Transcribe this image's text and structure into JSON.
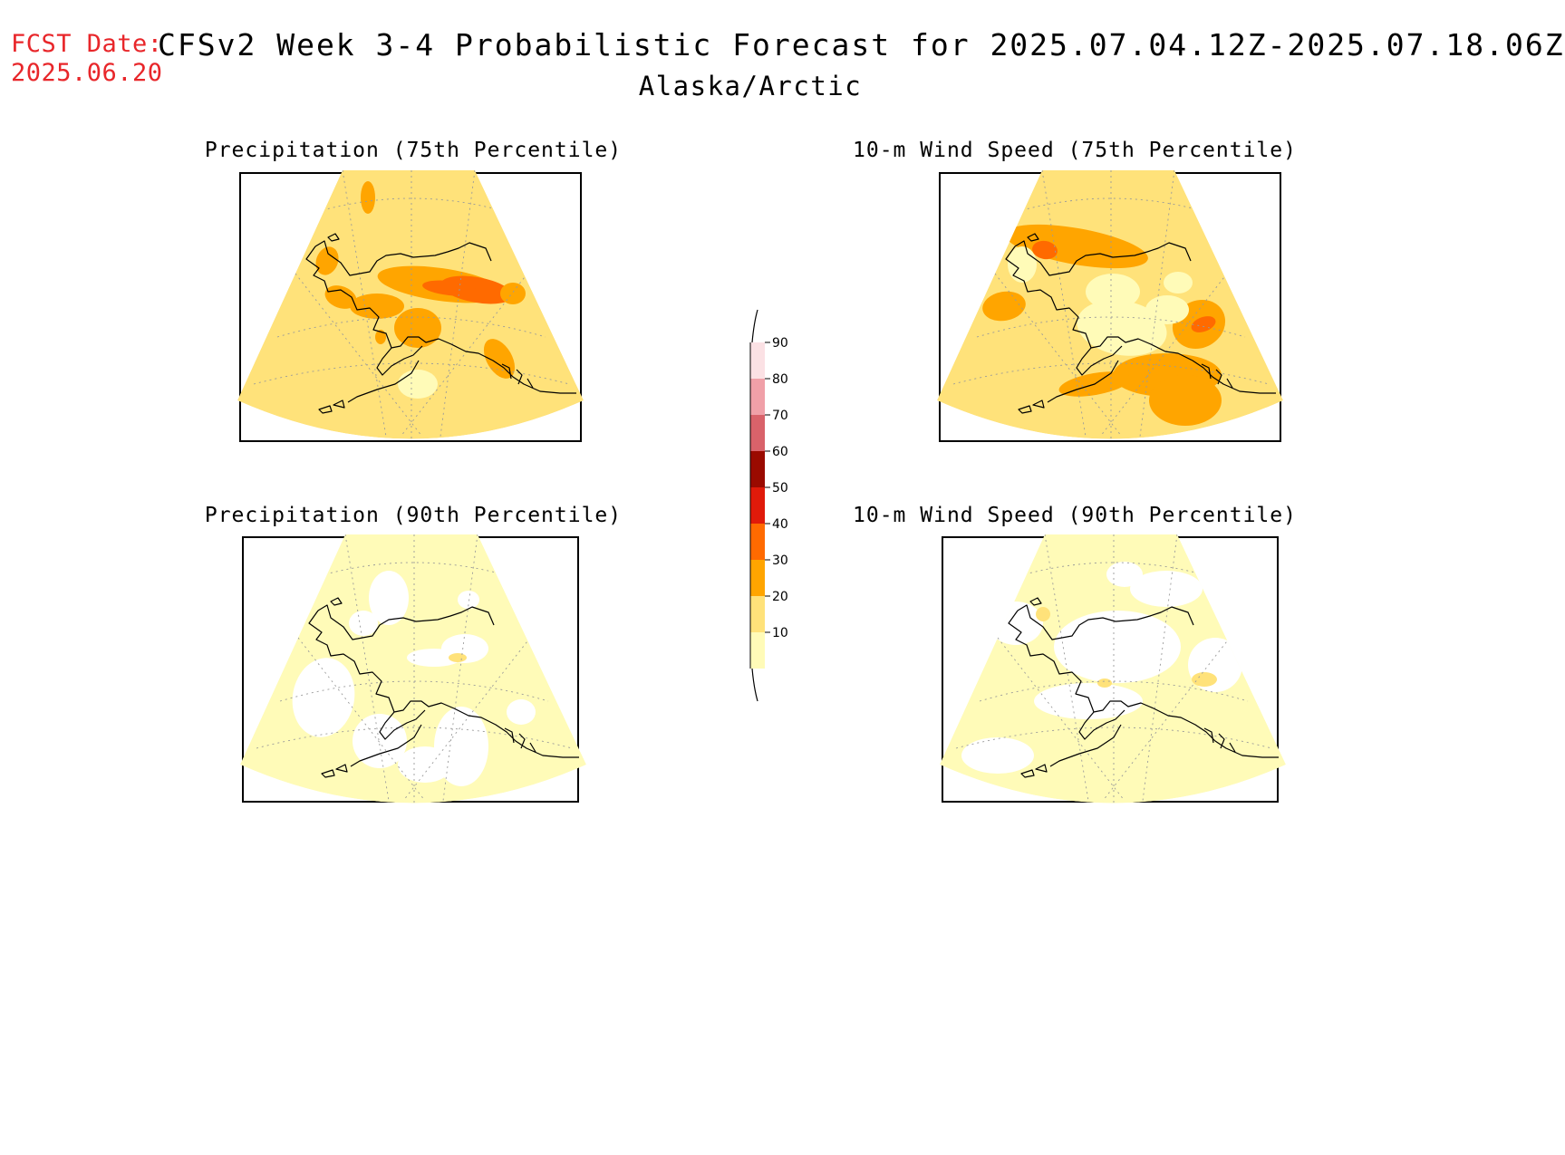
{
  "header": {
    "fcst_label": "FCST Date:",
    "fcst_date": "2025.06.20",
    "title": "CFSv2 Week 3-4 Probabilistic Forecast for 2025.07.04.12Z-2025.07.18.06Z",
    "region": "Alaska/Arctic"
  },
  "panels": [
    {
      "title": "Precipitation (75th Percentile)",
      "variable": "precipitation",
      "percentile": 75
    },
    {
      "title": "10-m Wind Speed (75th Percentile)",
      "variable": "wind",
      "percentile": 75
    },
    {
      "title": "Precipitation (90th Percentile)",
      "variable": "precipitation",
      "percentile": 90
    },
    {
      "title": "10-m Wind Speed (90th Percentile)",
      "variable": "wind",
      "percentile": 90
    }
  ],
  "colorbar": {
    "levels": [
      "10",
      "20",
      "30",
      "40",
      "50",
      "60",
      "70",
      "80",
      "90"
    ],
    "colors": [
      "#fffbb8",
      "#ffe27a",
      "#ffa500",
      "#ff6a00",
      "#e01a0a",
      "#9a0a00",
      "#d9626a",
      "#f0a0a8",
      "#fbe1e4"
    ]
  }
}
